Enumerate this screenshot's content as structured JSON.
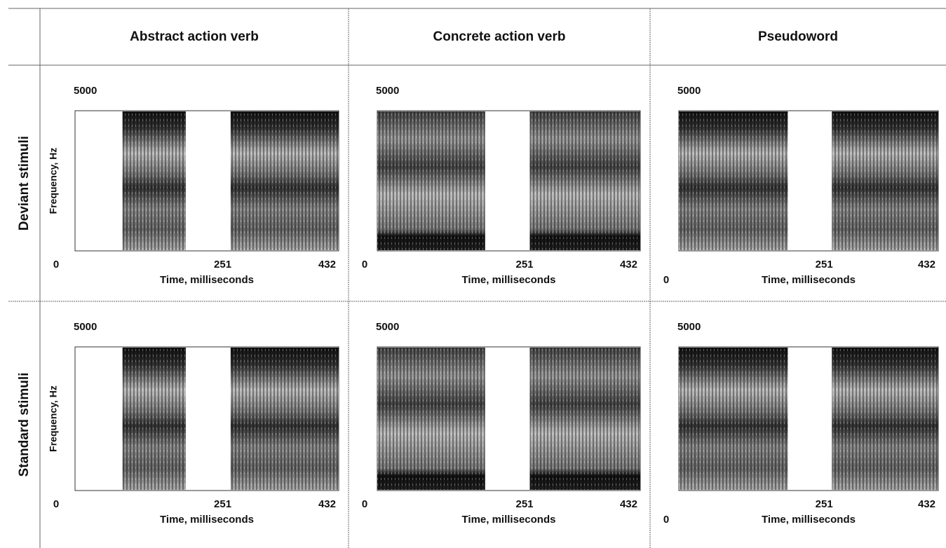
{
  "columns": [
    "Abstract action verb",
    "Concrete action verb",
    "Pseudoword"
  ],
  "rows": [
    {
      "label": "Deviant stimuli",
      "panels": [
        {
          "y_top": 5000,
          "y_label": "Frequency, Hz",
          "x_ticks": [
            0,
            251,
            432
          ],
          "x_label": "Time, milliseconds"
        },
        {
          "y_top": 5000,
          "x_ticks": [
            0,
            251,
            432
          ],
          "x_label": "Time, milliseconds"
        },
        {
          "y_top": 5000,
          "x_ticks": [
            0,
            251,
            432
          ],
          "x_label": "Time, milliseconds"
        }
      ]
    },
    {
      "label": "Standard stimuli",
      "panels": [
        {
          "y_top": 5000,
          "y_label": "Frequency, Hz",
          "x_ticks": [
            0,
            251,
            432
          ],
          "x_label": "Time, milliseconds"
        },
        {
          "y_top": 5000,
          "x_ticks": [
            0,
            251,
            432
          ],
          "x_label": "Time, milliseconds"
        },
        {
          "y_top": 5000,
          "x_ticks": [
            0,
            251,
            432
          ],
          "x_label": "Time, milliseconds"
        }
      ]
    }
  ]
}
